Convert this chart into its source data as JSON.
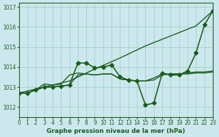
{
  "xlabel": "Graphe pression niveau de la mer (hPa)",
  "background_color": "#cce8ee",
  "grid_color": "#99ccbb",
  "line_color": "#1a5c1a",
  "xlim": [
    0,
    23
  ],
  "ylim": [
    1011.5,
    1017.2
  ],
  "xticks": [
    0,
    1,
    2,
    3,
    4,
    5,
    6,
    7,
    8,
    9,
    10,
    11,
    12,
    13,
    14,
    15,
    16,
    17,
    18,
    19,
    20,
    21,
    22,
    23
  ],
  "yticks": [
    1012,
    1013,
    1014,
    1015,
    1016,
    1017
  ],
  "series": [
    {
      "x": [
        0,
        1,
        2,
        3,
        4,
        5,
        6,
        7,
        8,
        9,
        10,
        11,
        12,
        13,
        14,
        15,
        16,
        17,
        18,
        19,
        20,
        21,
        22,
        23
      ],
      "y": [
        1012.7,
        1012.7,
        1012.85,
        1013.0,
        1013.0,
        1013.05,
        1013.1,
        1014.2,
        1014.2,
        1013.95,
        1014.0,
        1014.1,
        1013.5,
        1013.35,
        1013.3,
        1012.1,
        1012.2,
        1013.7,
        1013.6,
        1013.6,
        1013.8,
        1014.7,
        1016.1,
        1016.8
      ],
      "marker": "D",
      "markersize": 3,
      "linewidth": 1.2
    },
    {
      "x": [
        0,
        1,
        2,
        3,
        4,
        5,
        6,
        7,
        8,
        9,
        10,
        11,
        12,
        13,
        14,
        15,
        16,
        17,
        18,
        19,
        20,
        21,
        22,
        23
      ],
      "y": [
        1012.7,
        1012.7,
        1012.85,
        1013.0,
        1013.0,
        1013.05,
        1013.1,
        1013.6,
        1013.65,
        1013.6,
        1013.65,
        1013.65,
        1013.4,
        1013.35,
        1013.3,
        1013.3,
        1013.35,
        1013.6,
        1013.65,
        1013.65,
        1013.65,
        1013.7,
        1013.7,
        1013.75
      ],
      "marker": null,
      "linewidth": 1.0
    },
    {
      "x": [
        0,
        1,
        2,
        3,
        4,
        5,
        6,
        7,
        8,
        9,
        10,
        11,
        12,
        13,
        14,
        15,
        16,
        17,
        18,
        19,
        20,
        21,
        22,
        23
      ],
      "y": [
        1012.7,
        1012.7,
        1012.85,
        1013.15,
        1013.1,
        1013.15,
        1013.6,
        1013.7,
        1013.65,
        1013.6,
        1013.65,
        1013.65,
        1013.4,
        1013.35,
        1013.3,
        1013.3,
        1013.45,
        1013.65,
        1013.65,
        1013.65,
        1013.7,
        1013.75,
        1013.75,
        1013.8
      ],
      "marker": null,
      "linewidth": 1.0
    },
    {
      "x": [
        0,
        3,
        6,
        9,
        12,
        15,
        18,
        21,
        23
      ],
      "y": [
        1012.7,
        1013.0,
        1013.3,
        1013.9,
        1014.45,
        1015.05,
        1015.55,
        1016.05,
        1016.8
      ],
      "marker": null,
      "linewidth": 1.0
    }
  ]
}
